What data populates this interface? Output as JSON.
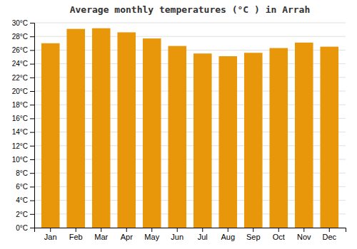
{
  "chart_data": {
    "type": "bar",
    "title": "Average monthly temperatures (°C ) in Arrah",
    "categories": [
      "Jan",
      "Feb",
      "Mar",
      "Apr",
      "May",
      "Jun",
      "Jul",
      "Aug",
      "Sep",
      "Oct",
      "Nov",
      "Dec"
    ],
    "values": [
      27.0,
      29.1,
      29.2,
      28.6,
      27.7,
      26.6,
      25.5,
      25.1,
      25.6,
      26.3,
      27.1,
      26.5
    ],
    "color": "#E8960A",
    "ylim": [
      0,
      30
    ],
    "yticks": [
      {
        "value": 0,
        "label": "0°C"
      },
      {
        "value": 2,
        "label": "2°C"
      },
      {
        "value": 4,
        "label": "4°C"
      },
      {
        "value": 6,
        "label": "6°C"
      },
      {
        "value": 8,
        "label": "8°C"
      },
      {
        "value": 10,
        "label": "10°C"
      },
      {
        "value": 12,
        "label": "12°C"
      },
      {
        "value": 14,
        "label": "14°C"
      },
      {
        "value": 16,
        "label": "16°C"
      },
      {
        "value": 18,
        "label": "18°C"
      },
      {
        "value": 20,
        "label": "20°C"
      },
      {
        "value": 22,
        "label": "22°C"
      },
      {
        "value": 24,
        "label": "24°C"
      },
      {
        "value": 26,
        "label": "26°C"
      },
      {
        "value": 28,
        "label": "28°C"
      },
      {
        "value": 30,
        "label": "30°C"
      }
    ],
    "grid": true
  }
}
